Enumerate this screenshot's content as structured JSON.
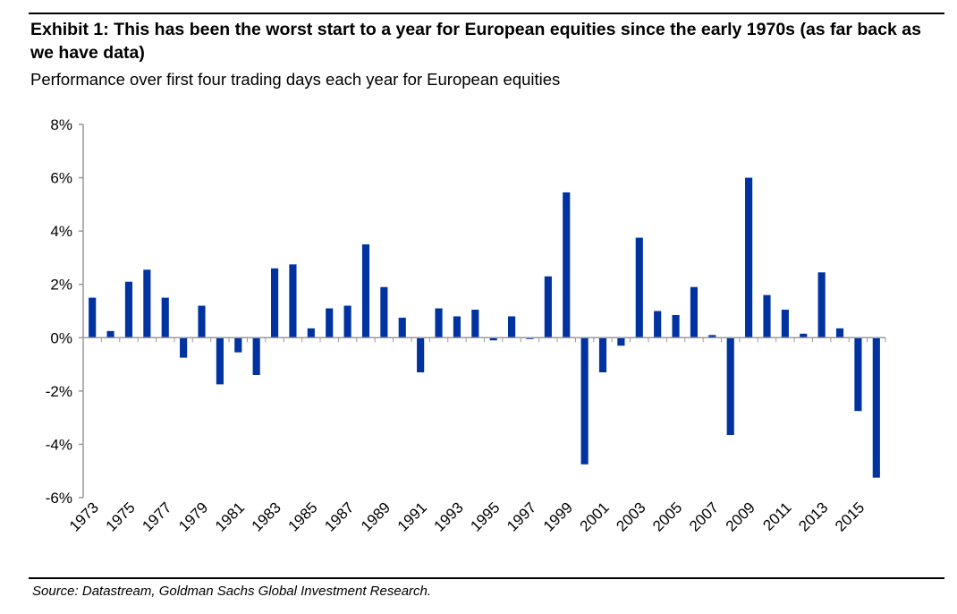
{
  "exhibit": {
    "title": "Exhibit 1: This has been the worst start to a year for European equities since the early 1970s (as far back as we have data)",
    "subtitle": "Performance over first four trading days each year for European equities",
    "source": "Source: Datastream, Goldman Sachs Global Investment Research."
  },
  "chart_data": {
    "type": "bar",
    "title": "Performance over first four trading days each year for European equities",
    "xlabel": "",
    "ylabel": "",
    "ylim": [
      -6,
      8
    ],
    "yticks": [
      -6,
      -4,
      -2,
      0,
      2,
      4,
      6,
      8
    ],
    "ytick_labels": [
      "-6%",
      "-4%",
      "-2%",
      "0%",
      "2%",
      "4%",
      "6%",
      "8%"
    ],
    "categories": [
      "1973",
      "1974",
      "1975",
      "1976",
      "1977",
      "1978",
      "1979",
      "1980",
      "1981",
      "1982",
      "1983",
      "1984",
      "1985",
      "1986",
      "1987",
      "1988",
      "1989",
      "1990",
      "1991",
      "1992",
      "1993",
      "1994",
      "1995",
      "1996",
      "1997",
      "1998",
      "1999",
      "2000",
      "2001",
      "2002",
      "2003",
      "2004",
      "2005",
      "2006",
      "2007",
      "2008",
      "2009",
      "2010",
      "2011",
      "2012",
      "2013",
      "2014",
      "2015",
      "2016"
    ],
    "xtick_labels": [
      "1973",
      "1975",
      "1977",
      "1979",
      "1981",
      "1983",
      "1985",
      "1987",
      "1989",
      "1991",
      "1993",
      "1995",
      "1997",
      "1999",
      "2001",
      "2003",
      "2005",
      "2007",
      "2009",
      "2011",
      "2013",
      "2015"
    ],
    "values": [
      1.5,
      0.25,
      2.1,
      2.55,
      1.5,
      -0.75,
      1.2,
      -1.75,
      -0.55,
      -1.4,
      2.6,
      2.75,
      0.35,
      1.1,
      1.2,
      3.5,
      1.9,
      0.75,
      -1.3,
      1.1,
      0.8,
      1.05,
      -0.1,
      0.8,
      -0.05,
      2.3,
      5.45,
      -4.75,
      -1.3,
      -0.3,
      3.75,
      1.0,
      0.85,
      1.9,
      0.1,
      -3.65,
      6.0,
      1.6,
      1.05,
      0.15,
      2.45,
      0.35,
      -2.75,
      -5.25
    ],
    "bar_color": "#0033a0",
    "grid": false
  }
}
